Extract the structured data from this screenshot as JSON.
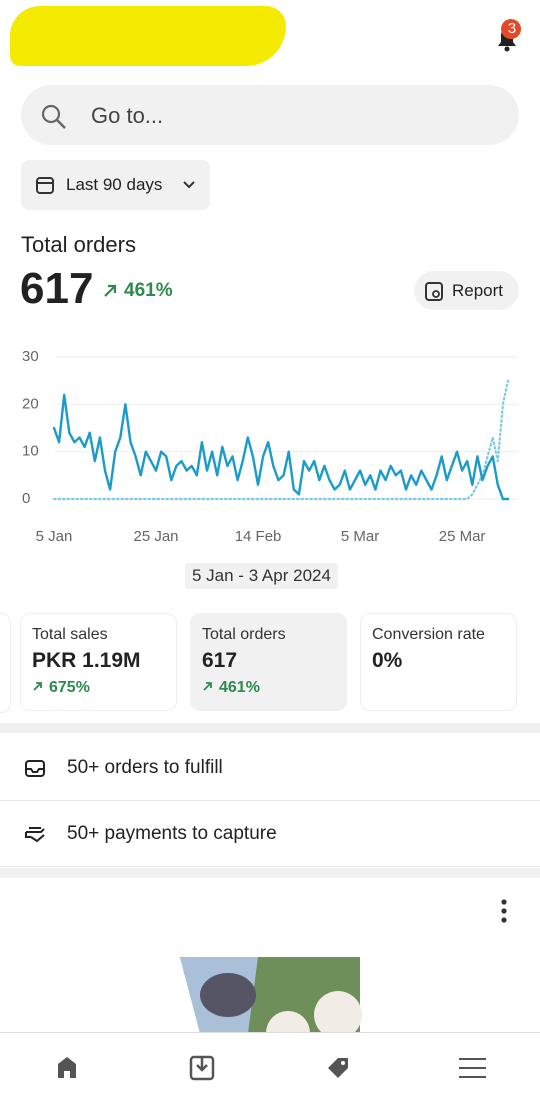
{
  "header": {
    "badge": "3"
  },
  "search": {
    "placeholder": "Go to..."
  },
  "date_button": "Last 90 days",
  "summary": {
    "title": "Total orders",
    "value": "617",
    "change": "461%",
    "report": "Report"
  },
  "chart_data": {
    "type": "line",
    "categories": [
      "5 Jan",
      null,
      null,
      null,
      null,
      null,
      null,
      null,
      null,
      null,
      null,
      null,
      null,
      null,
      null,
      null,
      null,
      null,
      null,
      null,
      "25 Jan",
      null,
      null,
      null,
      null,
      null,
      null,
      null,
      null,
      null,
      null,
      null,
      null,
      null,
      null,
      null,
      null,
      null,
      null,
      null,
      "14 Feb",
      null,
      null,
      null,
      null,
      null,
      null,
      null,
      null,
      null,
      null,
      null,
      null,
      null,
      null,
      null,
      null,
      null,
      null,
      null,
      "5 Mar",
      null,
      null,
      null,
      null,
      null,
      null,
      null,
      null,
      null,
      null,
      null,
      null,
      null,
      null,
      null,
      null,
      null,
      null,
      null,
      "25 Mar",
      null,
      null,
      null,
      null,
      null,
      null,
      null,
      null,
      null
    ],
    "series": [
      {
        "color": "#1a9bc9",
        "dashed": false,
        "values": [
          15,
          12,
          22,
          14,
          12,
          13,
          11,
          14,
          8,
          13,
          6,
          2,
          10,
          13,
          20,
          12,
          9,
          5,
          10,
          8,
          6,
          10,
          9,
          4,
          7,
          8,
          6,
          7,
          5,
          12,
          6,
          10,
          5,
          11,
          7,
          9,
          4,
          8,
          13,
          9,
          3,
          9,
          12,
          7,
          4,
          5,
          10,
          2,
          1,
          8,
          6,
          8,
          4,
          7,
          4,
          2,
          3,
          6,
          2,
          4,
          6,
          3,
          5,
          2,
          6,
          4,
          7,
          5,
          6,
          2,
          5,
          3,
          6,
          4,
          2,
          5,
          9,
          4,
          7,
          10,
          6,
          8,
          3,
          9,
          4,
          7,
          9,
          3,
          0,
          0
        ]
      },
      {
        "color": "#7ccbe6",
        "dashed": true,
        "values": [
          0,
          0,
          0,
          0,
          0,
          0,
          0,
          0,
          0,
          0,
          0,
          0,
          0,
          0,
          0,
          0,
          0,
          0,
          0,
          0,
          0,
          0,
          0,
          0,
          0,
          0,
          0,
          0,
          0,
          0,
          0,
          0,
          0,
          0,
          0,
          0,
          0,
          0,
          0,
          0,
          0,
          0,
          0,
          0,
          0,
          0,
          0,
          0,
          0,
          0,
          0,
          0,
          0,
          0,
          0,
          0,
          0,
          0,
          0,
          0,
          0,
          0,
          0,
          0,
          0,
          0,
          0,
          0,
          0,
          0,
          0,
          0,
          0,
          0,
          0,
          0,
          0,
          0,
          0,
          0,
          0,
          0,
          1,
          3,
          5,
          9,
          13,
          8,
          20,
          25
        ]
      }
    ],
    "ylim": [
      0,
      30
    ],
    "yticks": [
      0,
      10,
      20,
      30
    ],
    "grid": true,
    "date_range": "5 Jan - 3 Apr 2024"
  },
  "cards": [
    {
      "label": "Total sales",
      "value": "PKR 1.19M",
      "change": "675%"
    },
    {
      "label": "Total orders",
      "value": "617",
      "change": "461%"
    },
    {
      "label": "Conversion rate",
      "value": "0%"
    }
  ],
  "tasks": [
    "50+ orders to fulfill",
    "50+ payments to capture"
  ]
}
